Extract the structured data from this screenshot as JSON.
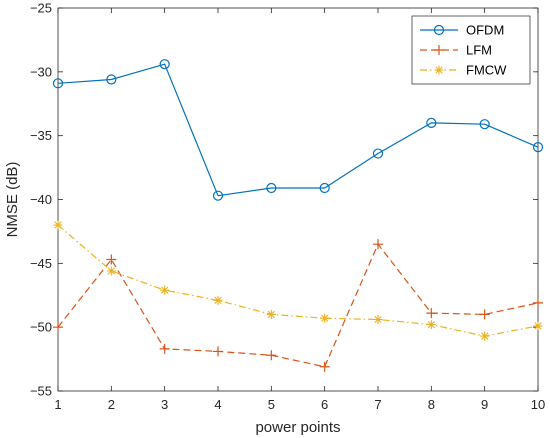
{
  "chart_data": {
    "type": "line",
    "title": "",
    "xlabel": "power points",
    "ylabel": "NMSE (dB)",
    "x": [
      1,
      2,
      3,
      4,
      5,
      6,
      7,
      8,
      9,
      10
    ],
    "xlim": [
      1,
      10
    ],
    "ylim": [
      -55,
      -25
    ],
    "xticks": [
      1,
      2,
      3,
      4,
      5,
      6,
      7,
      8,
      9,
      10
    ],
    "yticks": [
      -55,
      -50,
      -45,
      -40,
      -35,
      -30,
      -25
    ],
    "grid": false,
    "legend_position": "top-right",
    "series": [
      {
        "name": "OFDM",
        "color": "#0072BD",
        "line_style": "solid",
        "marker": "circle",
        "values": [
          -30.9,
          -30.6,
          -29.4,
          -39.7,
          -39.1,
          -39.1,
          -36.4,
          -34.0,
          -34.1,
          -35.9
        ]
      },
      {
        "name": "LFM",
        "color": "#D95319",
        "line_style": "dashed",
        "marker": "plus",
        "values": [
          -50.0,
          -44.7,
          -51.7,
          -51.9,
          -52.2,
          -53.1,
          -43.5,
          -48.9,
          -49.0,
          -48.1
        ]
      },
      {
        "name": "FMCW",
        "color": "#EDB120",
        "line_style": "dash-dot",
        "marker": "asterisk",
        "values": [
          -42.0,
          -45.6,
          -47.1,
          -47.9,
          -49.0,
          -49.3,
          -49.4,
          -49.8,
          -50.7,
          -49.9
        ]
      }
    ]
  }
}
